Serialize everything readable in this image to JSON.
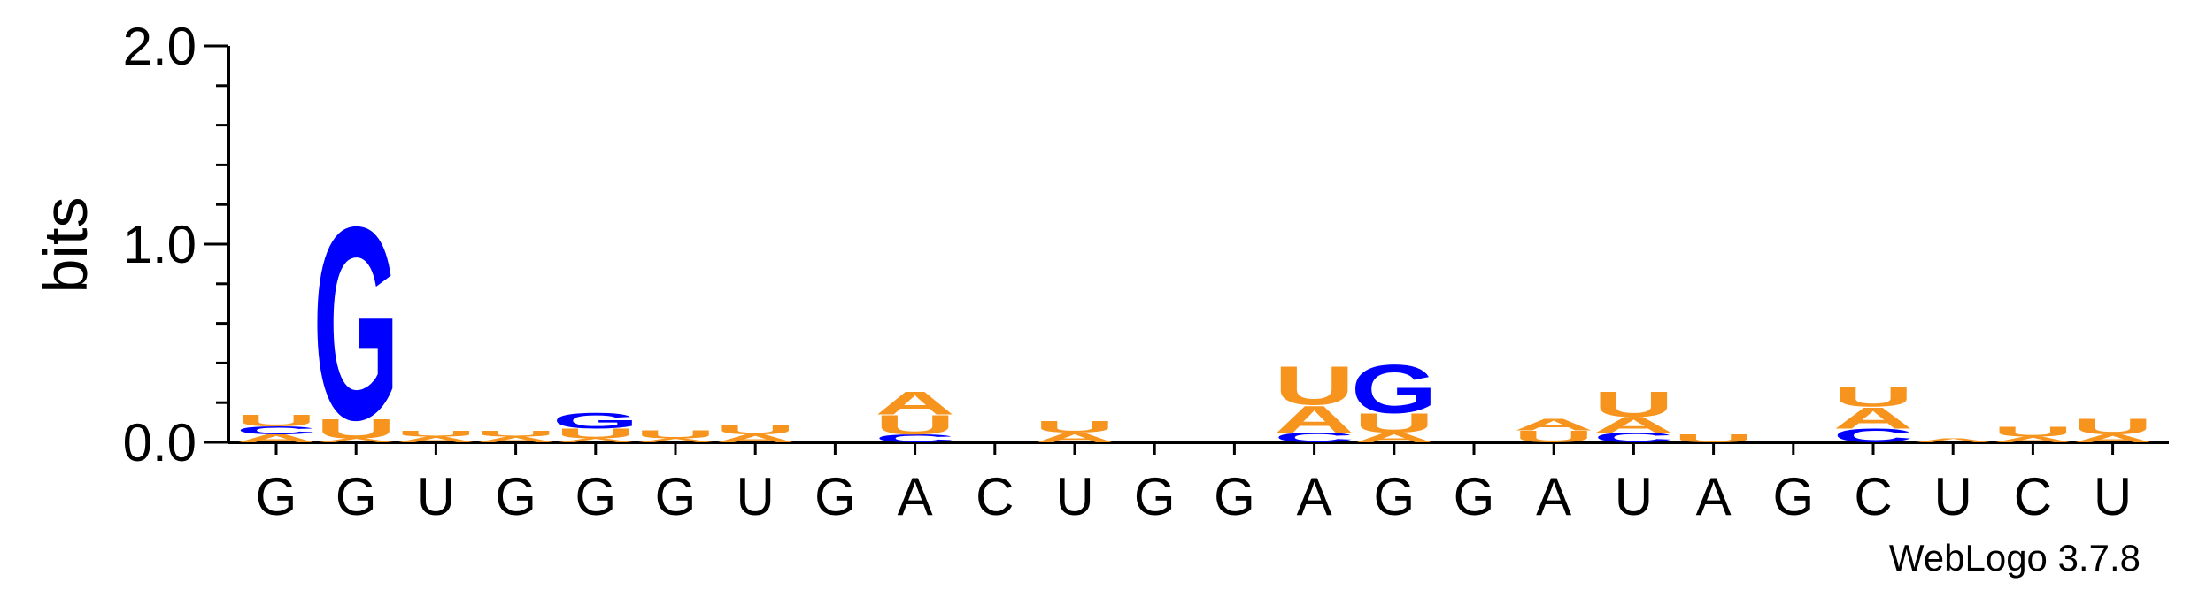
{
  "chart_data": {
    "type": "sequence-logo",
    "ylabel": "bits",
    "ylim": [
      0,
      2.0
    ],
    "yticks": [
      "0.0",
      "1.0",
      "2.0"
    ],
    "colors": {
      "A": "#f7941d",
      "U": "#f7941d",
      "G": "#0000ff",
      "C": "#0000ff"
    },
    "positions": [
      {
        "label": "G",
        "stack": [
          {
            "base": "A",
            "bits": 0.04
          },
          {
            "base": "C",
            "bits": 0.04
          },
          {
            "base": "U",
            "bits": 0.06
          }
        ]
      },
      {
        "label": "G",
        "stack": [
          {
            "base": "A",
            "bits": 0.02
          },
          {
            "base": "U",
            "bits": 0.1
          },
          {
            "base": "G",
            "bits": 1.0
          }
        ]
      },
      {
        "label": "U",
        "stack": [
          {
            "base": "A",
            "bits": 0.03
          },
          {
            "base": "U",
            "bits": 0.03
          }
        ]
      },
      {
        "label": "G",
        "stack": [
          {
            "base": "A",
            "bits": 0.03
          },
          {
            "base": "U",
            "bits": 0.03
          }
        ]
      },
      {
        "label": "G",
        "stack": [
          {
            "base": "A",
            "bits": 0.02
          },
          {
            "base": "U",
            "bits": 0.05
          },
          {
            "base": "G",
            "bits": 0.08
          }
        ]
      },
      {
        "label": "G",
        "stack": [
          {
            "base": "A",
            "bits": 0.02
          },
          {
            "base": "U",
            "bits": 0.04
          }
        ]
      },
      {
        "label": "U",
        "stack": [
          {
            "base": "A",
            "bits": 0.04
          },
          {
            "base": "U",
            "bits": 0.05
          }
        ]
      },
      {
        "label": "G",
        "stack": []
      },
      {
        "label": "A",
        "stack": [
          {
            "base": "C",
            "bits": 0.04
          },
          {
            "base": "U",
            "bits": 0.1
          },
          {
            "base": "A",
            "bits": 0.12
          }
        ]
      },
      {
        "label": "C",
        "stack": []
      },
      {
        "label": "U",
        "stack": [
          {
            "base": "A",
            "bits": 0.05
          },
          {
            "base": "U",
            "bits": 0.06
          }
        ]
      },
      {
        "label": "G",
        "stack": []
      },
      {
        "label": "G",
        "stack": []
      },
      {
        "label": "A",
        "stack": [
          {
            "base": "C",
            "bits": 0.05
          },
          {
            "base": "A",
            "bits": 0.14
          },
          {
            "base": "U",
            "bits": 0.2
          }
        ]
      },
      {
        "label": "G",
        "stack": [
          {
            "base": "A",
            "bits": 0.05
          },
          {
            "base": "U",
            "bits": 0.1
          },
          {
            "base": "G",
            "bits": 0.25
          }
        ]
      },
      {
        "label": "G",
        "stack": []
      },
      {
        "label": "A",
        "stack": [
          {
            "base": "U",
            "bits": 0.06
          },
          {
            "base": "A",
            "bits": 0.06
          }
        ]
      },
      {
        "label": "U",
        "stack": [
          {
            "base": "C",
            "bits": 0.05
          },
          {
            "base": "A",
            "bits": 0.08
          },
          {
            "base": "U",
            "bits": 0.13
          }
        ]
      },
      {
        "label": "A",
        "stack": [
          {
            "base": "U",
            "bits": 0.04
          }
        ]
      },
      {
        "label": "G",
        "stack": []
      },
      {
        "label": "C",
        "stack": [
          {
            "base": "C",
            "bits": 0.07
          },
          {
            "base": "A",
            "bits": 0.11
          },
          {
            "base": "U",
            "bits": 0.1
          }
        ]
      },
      {
        "label": "U",
        "stack": [
          {
            "base": "A",
            "bits": 0.02
          }
        ]
      },
      {
        "label": "C",
        "stack": [
          {
            "base": "A",
            "bits": 0.03
          },
          {
            "base": "U",
            "bits": 0.05
          }
        ]
      },
      {
        "label": "U",
        "stack": [
          {
            "base": "A",
            "bits": 0.04
          },
          {
            "base": "U",
            "bits": 0.08
          }
        ]
      }
    ],
    "credit": "WebLogo 3.7.8"
  }
}
